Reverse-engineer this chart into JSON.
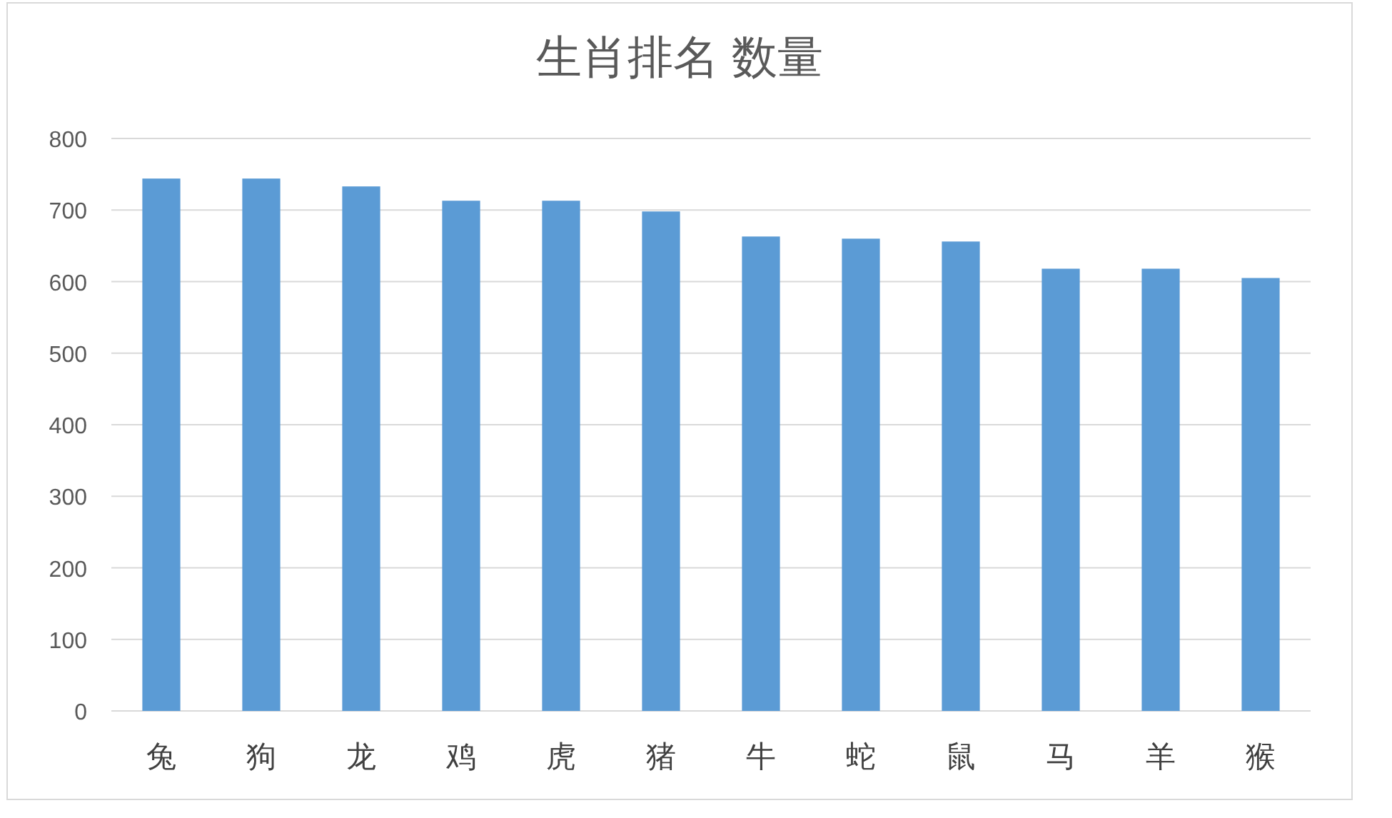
{
  "chart_data": {
    "type": "bar",
    "title": "生肖排名 数量",
    "categories": [
      "兔",
      "狗",
      "龙",
      "鸡",
      "虎",
      "猪",
      "牛",
      "蛇",
      "鼠",
      "马",
      "羊",
      "猴"
    ],
    "values": [
      744,
      744,
      733,
      713,
      713,
      698,
      663,
      660,
      656,
      618,
      618,
      605
    ],
    "color": "#5b9bd5",
    "ylim": [
      0,
      800
    ],
    "yticks": [
      0,
      100,
      200,
      300,
      400,
      500,
      600,
      700,
      800
    ],
    "grid": "y"
  }
}
